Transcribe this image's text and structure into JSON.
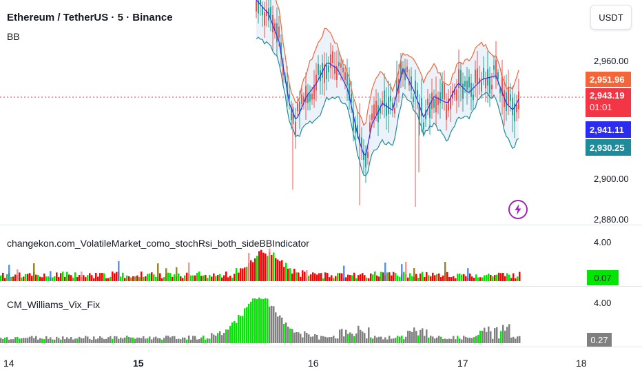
{
  "header": {
    "symbol_title": "Ethereum / TetherUS · 5 · Binance",
    "indicator_label": "BB",
    "currency_button": "USDT"
  },
  "price_axis": {
    "labels": [
      "2,960.00",
      "2,900.00",
      "2,880.00"
    ]
  },
  "price_tags": {
    "upper_band": "2,951.96",
    "last_price": "2,943.19",
    "countdown": "01:01",
    "basis": "2,941.11",
    "lower_band": "2,930.25"
  },
  "colors": {
    "upper_band": "#f2663a",
    "last_price": "#f23645",
    "basis": "#2c2cf0",
    "lower_band": "#1e8a9a",
    "up_candle": "#26a69a",
    "down_candle": "#ef5350",
    "stoch_green": "#00e600",
    "stoch_red": "#ff0000",
    "vix_gray": "#808080"
  },
  "lightning_icon": "lightning-bolt-icon",
  "pane_stoch": {
    "title": "changekon.com_VolatileMarket_como_stochRsi_both_sideBBIndicator",
    "axis_label": "4.00",
    "value": "0.07"
  },
  "pane_vix": {
    "title": "CM_Williams_Vix_Fix",
    "axis_label": "4.00",
    "value": "0.27"
  },
  "time_axis": {
    "labels": [
      "14",
      "15",
      "16",
      "17",
      "18"
    ]
  }
}
